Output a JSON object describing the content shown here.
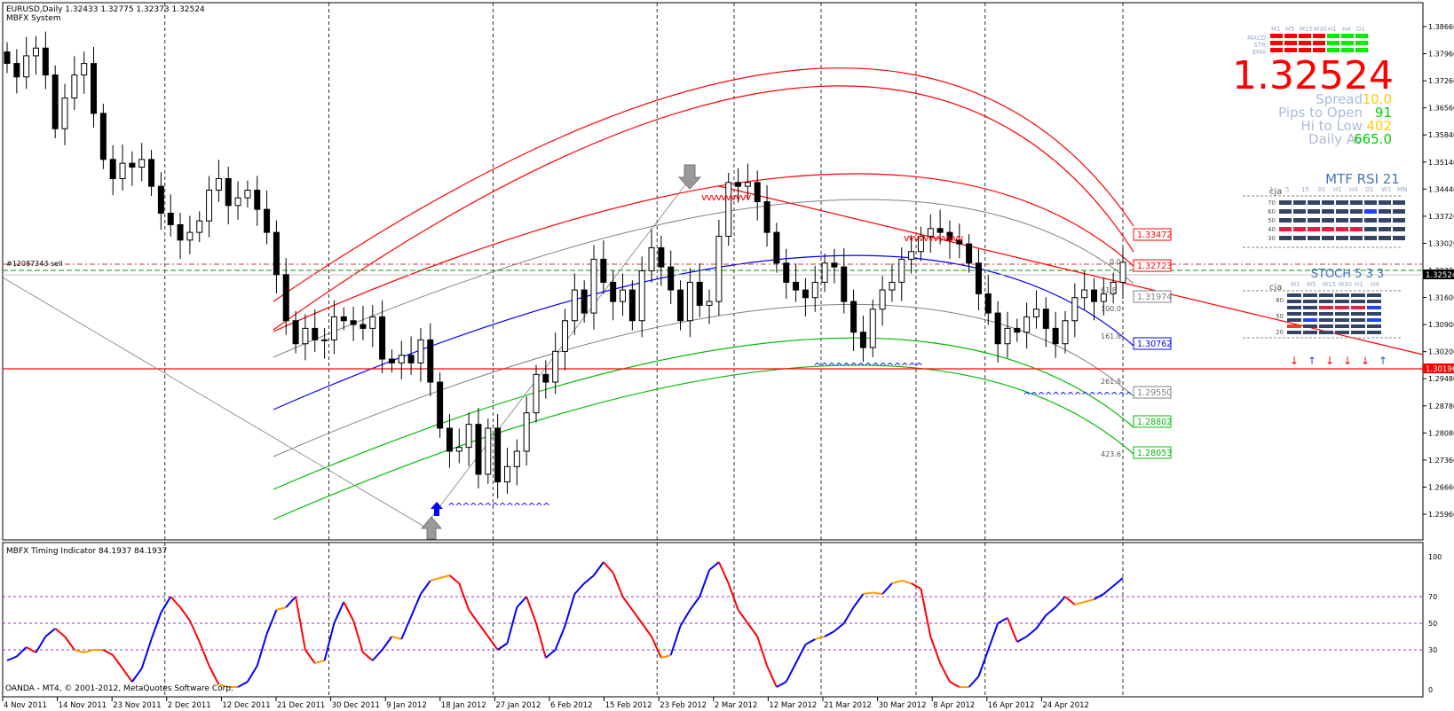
{
  "header": {
    "symbol_line": "EURUSD,Daily  1.32433 1.32775 1.32373 1.32524",
    "system": "MBFX System",
    "sell_label": "#12087343 sell"
  },
  "panel": {
    "tf_labels": [
      "M1",
      "M5",
      "M15",
      "M30",
      "H1",
      "H4",
      "D1"
    ],
    "row_labels": [
      "MACD",
      "STR",
      "EMA"
    ],
    "tf_colors": [
      "#ff0000",
      "#ff0000",
      "#ff0000",
      "#ff0000",
      "#00ee00",
      "#00ee00",
      "#00ee00"
    ],
    "price": "1.32524",
    "stats": [
      {
        "label": "Spread",
        "value": "10.0",
        "color": "#ffcc00"
      },
      {
        "label": "Pips to Open",
        "value": "91",
        "color": "#00cc00"
      },
      {
        "label": "Hi to Low",
        "value": "402",
        "color": "#ffcc00"
      },
      {
        "label": "Daily Av",
        "value": "665.0",
        "color": "#00cc00"
      }
    ],
    "rsi_title": "MTF RSI  21",
    "rsi_author": "cja",
    "rsi_tfs": [
      "1",
      "5",
      "15",
      "30",
      "H1",
      "H4",
      "D1",
      "W1",
      "MN"
    ],
    "rsi_levels": [
      "70",
      "60",
      "50",
      "40",
      "30"
    ],
    "stoch_title": "STOCH  5 3 3",
    "stoch_author": "cja",
    "stoch_tfs": [
      "M1",
      "M5",
      "M15",
      "M30",
      "H1",
      "H4"
    ],
    "stoch_levels": [
      "80",
      "50",
      "20"
    ],
    "stoch_arrows": [
      "down",
      "up",
      "down",
      "down",
      "down",
      "up"
    ]
  },
  "price_labels": [
    {
      "value": "1.33472",
      "color": "#ff0000"
    },
    {
      "value": "1.32723",
      "color": "#ff0000"
    },
    {
      "value": "1.31974",
      "color": "#808080"
    },
    {
      "value": "1.30762",
      "color": "#0000ff"
    },
    {
      "value": "1.29550",
      "color": "#808080"
    },
    {
      "value": "1.28802",
      "color": "#00bb00"
    },
    {
      "value": "1.28053",
      "color": "#00bb00"
    }
  ],
  "fib_labels": [
    "0.0",
    "61.8",
    "100.0",
    "161.8",
    "261.8",
    "423.6"
  ],
  "hline_label": "1.30196",
  "current_price_label": "1.32524",
  "subwindow": {
    "title": "MBFX Timing Indicator 84.1937 84.1937",
    "copyright": "OANDA - MT4, © 2001-2012, MetaQuotes Software Corp.",
    "levels": [
      "100",
      "70",
      "50",
      "30",
      "0"
    ]
  },
  "chart_data": {
    "type": "candlestick",
    "symbol": "EURUSD",
    "timeframe": "Daily",
    "ohlc_last": {
      "open": 1.32433,
      "high": 1.32775,
      "low": 1.32373,
      "close": 1.32524
    },
    "y_ticks": [
      "1.38660",
      "1.37960",
      "1.37260",
      "1.36560",
      "1.35840",
      "1.35140",
      "1.34440",
      "1.33720",
      "1.33020",
      "1.32320",
      "1.31600",
      "1.30900",
      "1.30200",
      "1.29480",
      "1.28780",
      "1.28080",
      "1.27360",
      "1.26660",
      "1.25960"
    ],
    "x_ticks": [
      "4 Nov 2011",
      "14 Nov 2011",
      "23 Nov 2011",
      "2 Dec 2011",
      "12 Dec 2011",
      "21 Dec 2011",
      "30 Dec 2011",
      "9 Jan 2012",
      "18 Jan 2012",
      "27 Jan 2012",
      "6 Feb 2012",
      "15 Feb 2012",
      "23 Feb 2012",
      "2 Mar 2012",
      "12 Mar 2012",
      "21 Mar 2012",
      "30 Mar 2012",
      "8 Apr 2012",
      "16 Apr 2012",
      "24 Apr 2012"
    ],
    "ylim": [
      1.2596,
      1.3866
    ],
    "closes": [
      1.377,
      1.3735,
      1.379,
      1.381,
      1.374,
      1.36,
      1.368,
      1.374,
      1.377,
      1.364,
      1.352,
      1.347,
      1.351,
      1.35,
      1.352,
      1.345,
      1.338,
      1.335,
      1.331,
      1.333,
      1.336,
      1.344,
      1.347,
      1.34,
      1.342,
      1.344,
      1.339,
      1.333,
      1.322,
      1.31,
      1.304,
      1.308,
      1.305,
      1.305,
      1.311,
      1.31,
      1.309,
      1.308,
      1.311,
      1.3,
      1.299,
      1.301,
      1.299,
      1.305,
      1.294,
      1.282,
      1.276,
      1.277,
      1.283,
      1.27,
      1.282,
      1.268,
      1.272,
      1.276,
      1.286,
      1.296,
      1.294,
      1.302,
      1.31,
      1.318,
      1.312,
      1.326,
      1.32,
      1.315,
      1.318,
      1.31,
      1.323,
      1.329,
      1.324,
      1.318,
      1.31,
      1.32,
      1.314,
      1.315,
      1.332,
      1.346,
      1.345,
      1.346,
      1.341,
      1.333,
      1.325,
      1.32,
      1.318,
      1.316,
      1.32,
      1.325,
      1.324,
      1.315,
      1.307,
      1.303,
      1.313,
      1.318,
      1.32,
      1.326,
      1.328,
      1.332,
      1.334,
      1.333,
      1.331,
      1.33,
      1.325,
      1.317,
      1.312,
      1.304,
      1.308,
      1.307,
      1.311,
      1.313,
      1.308,
      1.304,
      1.31,
      1.316,
      1.318,
      1.315,
      1.317,
      1.32,
      1.3252
    ],
    "trendline": {
      "from": {
        "date": "23 Feb 2012",
        "price": 1.3486
      },
      "to": {
        "date": "24 Apr 2012",
        "price": 1.321
      }
    },
    "hline": 1.30196,
    "timing_indicator": {
      "levels": [
        100,
        70,
        50,
        30,
        0
      ],
      "last": 84.1937,
      "values": [
        22,
        25,
        32,
        28,
        40,
        46,
        40,
        30,
        28,
        30,
        30,
        26,
        16,
        6,
        16,
        38,
        58,
        70,
        62,
        52,
        36,
        18,
        4,
        2,
        2,
        6,
        18,
        42,
        60,
        62,
        70,
        30,
        20,
        22,
        50,
        66,
        52,
        28,
        22,
        30,
        40,
        38,
        55,
        72,
        82,
        84,
        86,
        80,
        60,
        50,
        40,
        30,
        35,
        62,
        70,
        50,
        24,
        30,
        48,
        72,
        80,
        86,
        96,
        88,
        70,
        60,
        50,
        40,
        24,
        26,
        48,
        60,
        70,
        90,
        96,
        80,
        60,
        50,
        40,
        18,
        2,
        6,
        20,
        34,
        38,
        40,
        44,
        50,
        62,
        72,
        73,
        72,
        80,
        82,
        80,
        76,
        40,
        20,
        6,
        2,
        2,
        10,
        30,
        50,
        54,
        36,
        40,
        46,
        56,
        62,
        70,
        64,
        66,
        68,
        72,
        78,
        84
      ]
    }
  }
}
